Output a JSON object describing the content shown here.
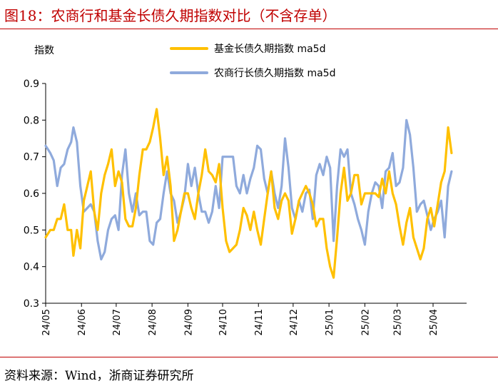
{
  "figure": {
    "title": "图18：农商行和基金长债久期指数对比（不含存单）",
    "source": "资料来源：Wind，浙商证券研究所"
  },
  "colors": {
    "fund": "#FFC000",
    "bank": "#8FAADC",
    "accent": "#C00000"
  },
  "chart_data": {
    "type": "line",
    "ylabel": "指数",
    "ylim": [
      0.3,
      0.9
    ],
    "yticks": [
      "0.3",
      "0.4",
      "0.5",
      "0.6",
      "0.7",
      "0.8",
      "0.9"
    ],
    "x_range": [
      "2024-05-01",
      "2025-04-30"
    ],
    "xticks": [
      "24/05",
      "24/06",
      "24/07",
      "24/08",
      "24/09",
      "24/10",
      "24/11",
      "24/12",
      "25/01",
      "25/02",
      "25/03",
      "25/04"
    ],
    "legend_position": "top",
    "series": [
      {
        "name": "基金长债久期指数 ma5d",
        "color": "#FFC000",
        "points": [
          [
            "2024-05-01",
            0.48
          ],
          [
            "2024-05-05",
            0.5
          ],
          [
            "2024-05-08",
            0.5
          ],
          [
            "2024-05-11",
            0.53
          ],
          [
            "2024-05-14",
            0.53
          ],
          [
            "2024-05-17",
            0.57
          ],
          [
            "2024-05-20",
            0.5
          ],
          [
            "2024-05-23",
            0.5
          ],
          [
            "2024-05-25",
            0.43
          ],
          [
            "2024-05-28",
            0.5
          ],
          [
            "2024-05-31",
            0.45
          ],
          [
            "2024-06-03",
            0.58
          ],
          [
            "2024-06-06",
            0.62
          ],
          [
            "2024-06-09",
            0.66
          ],
          [
            "2024-06-12",
            0.55
          ],
          [
            "2024-06-15",
            0.5
          ],
          [
            "2024-06-18",
            0.6
          ],
          [
            "2024-06-21",
            0.65
          ],
          [
            "2024-06-24",
            0.68
          ],
          [
            "2024-06-27",
            0.72
          ],
          [
            "2024-06-30",
            0.62
          ],
          [
            "2024-07-03",
            0.66
          ],
          [
            "2024-07-06",
            0.63
          ],
          [
            "2024-07-09",
            0.53
          ],
          [
            "2024-07-12",
            0.51
          ],
          [
            "2024-07-15",
            0.51
          ],
          [
            "2024-07-18",
            0.56
          ],
          [
            "2024-07-21",
            0.65
          ],
          [
            "2024-07-24",
            0.72
          ],
          [
            "2024-07-27",
            0.72
          ],
          [
            "2024-07-30",
            0.74
          ],
          [
            "2024-08-02",
            0.78
          ],
          [
            "2024-08-05",
            0.83
          ],
          [
            "2024-08-08",
            0.75
          ],
          [
            "2024-08-11",
            0.65
          ],
          [
            "2024-08-14",
            0.7
          ],
          [
            "2024-08-17",
            0.62
          ],
          [
            "2024-08-20",
            0.47
          ],
          [
            "2024-08-23",
            0.5
          ],
          [
            "2024-08-26",
            0.55
          ],
          [
            "2024-08-29",
            0.6
          ],
          [
            "2024-09-01",
            0.6
          ],
          [
            "2024-09-04",
            0.56
          ],
          [
            "2024-09-07",
            0.53
          ],
          [
            "2024-09-10",
            0.6
          ],
          [
            "2024-09-13",
            0.65
          ],
          [
            "2024-09-16",
            0.72
          ],
          [
            "2024-09-19",
            0.66
          ],
          [
            "2024-09-22",
            0.65
          ],
          [
            "2024-09-25",
            0.63
          ],
          [
            "2024-09-28",
            0.68
          ],
          [
            "2024-10-01",
            0.56
          ],
          [
            "2024-10-04",
            0.47
          ],
          [
            "2024-10-07",
            0.44
          ],
          [
            "2024-10-10",
            0.45
          ],
          [
            "2024-10-13",
            0.46
          ],
          [
            "2024-10-16",
            0.5
          ],
          [
            "2024-10-19",
            0.56
          ],
          [
            "2024-10-22",
            0.54
          ],
          [
            "2024-10-25",
            0.5
          ],
          [
            "2024-10-28",
            0.55
          ],
          [
            "2024-10-31",
            0.5
          ],
          [
            "2024-11-03",
            0.46
          ],
          [
            "2024-11-06",
            0.53
          ],
          [
            "2024-11-09",
            0.6
          ],
          [
            "2024-11-12",
            0.66
          ],
          [
            "2024-11-15",
            0.56
          ],
          [
            "2024-11-18",
            0.53
          ],
          [
            "2024-11-21",
            0.58
          ],
          [
            "2024-11-24",
            0.6
          ],
          [
            "2024-11-27",
            0.58
          ],
          [
            "2024-11-30",
            0.49
          ],
          [
            "2024-12-03",
            0.53
          ],
          [
            "2024-12-06",
            0.58
          ],
          [
            "2024-12-09",
            0.6
          ],
          [
            "2024-12-12",
            0.62
          ],
          [
            "2024-12-15",
            0.6
          ],
          [
            "2024-12-18",
            0.57
          ],
          [
            "2024-12-21",
            0.51
          ],
          [
            "2024-12-24",
            0.53
          ],
          [
            "2024-12-27",
            0.53
          ],
          [
            "2024-12-30",
            0.45
          ],
          [
            "2025-01-02",
            0.4
          ],
          [
            "2025-01-05",
            0.37
          ],
          [
            "2025-01-08",
            0.48
          ],
          [
            "2025-01-11",
            0.6
          ],
          [
            "2025-01-14",
            0.67
          ],
          [
            "2025-01-17",
            0.58
          ],
          [
            "2025-01-20",
            0.6
          ],
          [
            "2025-01-23",
            0.65
          ],
          [
            "2025-01-26",
            0.65
          ],
          [
            "2025-01-29",
            0.57
          ],
          [
            "2025-02-01",
            0.6
          ],
          [
            "2025-02-04",
            0.6
          ],
          [
            "2025-02-07",
            0.6
          ],
          [
            "2025-02-10",
            0.6
          ],
          [
            "2025-02-13",
            0.59
          ],
          [
            "2025-02-16",
            0.64
          ],
          [
            "2025-02-19",
            0.6
          ],
          [
            "2025-02-22",
            0.66
          ],
          [
            "2025-02-25",
            0.6
          ],
          [
            "2025-02-28",
            0.57
          ],
          [
            "2025-03-03",
            0.51
          ],
          [
            "2025-03-06",
            0.46
          ],
          [
            "2025-03-09",
            0.52
          ],
          [
            "2025-03-12",
            0.56
          ],
          [
            "2025-03-15",
            0.48
          ],
          [
            "2025-03-18",
            0.45
          ],
          [
            "2025-03-21",
            0.42
          ],
          [
            "2025-03-24",
            0.45
          ],
          [
            "2025-03-27",
            0.53
          ],
          [
            "2025-03-30",
            0.56
          ],
          [
            "2025-04-02",
            0.51
          ],
          [
            "2025-04-05",
            0.57
          ],
          [
            "2025-04-08",
            0.63
          ],
          [
            "2025-04-11",
            0.66
          ],
          [
            "2025-04-14",
            0.78
          ],
          [
            "2025-04-17",
            0.71
          ]
        ]
      },
      {
        "name": "农商行长债久期指数 ma5d",
        "color": "#8FAADC",
        "points": [
          [
            "2024-05-01",
            0.73
          ],
          [
            "2024-05-05",
            0.71
          ],
          [
            "2024-05-08",
            0.69
          ],
          [
            "2024-05-11",
            0.62
          ],
          [
            "2024-05-14",
            0.67
          ],
          [
            "2024-05-17",
            0.68
          ],
          [
            "2024-05-20",
            0.72
          ],
          [
            "2024-05-23",
            0.74
          ],
          [
            "2024-05-25",
            0.78
          ],
          [
            "2024-05-28",
            0.74
          ],
          [
            "2024-05-31",
            0.62
          ],
          [
            "2024-06-03",
            0.55
          ],
          [
            "2024-06-06",
            0.56
          ],
          [
            "2024-06-09",
            0.57
          ],
          [
            "2024-06-12",
            0.55
          ],
          [
            "2024-06-15",
            0.47
          ],
          [
            "2024-06-18",
            0.42
          ],
          [
            "2024-06-21",
            0.44
          ],
          [
            "2024-06-24",
            0.5
          ],
          [
            "2024-06-27",
            0.53
          ],
          [
            "2024-06-30",
            0.54
          ],
          [
            "2024-07-03",
            0.5
          ],
          [
            "2024-07-06",
            0.65
          ],
          [
            "2024-07-09",
            0.72
          ],
          [
            "2024-07-12",
            0.6
          ],
          [
            "2024-07-15",
            0.55
          ],
          [
            "2024-07-18",
            0.6
          ],
          [
            "2024-07-21",
            0.54
          ],
          [
            "2024-07-24",
            0.55
          ],
          [
            "2024-07-27",
            0.55
          ],
          [
            "2024-07-30",
            0.47
          ],
          [
            "2024-08-02",
            0.46
          ],
          [
            "2024-08-05",
            0.52
          ],
          [
            "2024-08-08",
            0.53
          ],
          [
            "2024-08-11",
            0.6
          ],
          [
            "2024-08-14",
            0.66
          ],
          [
            "2024-08-17",
            0.6
          ],
          [
            "2024-08-20",
            0.58
          ],
          [
            "2024-08-23",
            0.52
          ],
          [
            "2024-08-26",
            0.55
          ],
          [
            "2024-08-29",
            0.59
          ],
          [
            "2024-09-01",
            0.68
          ],
          [
            "2024-09-04",
            0.62
          ],
          [
            "2024-09-07",
            0.67
          ],
          [
            "2024-09-10",
            0.6
          ],
          [
            "2024-09-13",
            0.55
          ],
          [
            "2024-09-16",
            0.55
          ],
          [
            "2024-09-19",
            0.52
          ],
          [
            "2024-09-22",
            0.55
          ],
          [
            "2024-09-25",
            0.62
          ],
          [
            "2024-09-28",
            0.56
          ],
          [
            "2024-10-01",
            0.7
          ],
          [
            "2024-10-04",
            0.7
          ],
          [
            "2024-10-07",
            0.7
          ],
          [
            "2024-10-10",
            0.7
          ],
          [
            "2024-10-13",
            0.62
          ],
          [
            "2024-10-16",
            0.6
          ],
          [
            "2024-10-19",
            0.65
          ],
          [
            "2024-10-22",
            0.6
          ],
          [
            "2024-10-25",
            0.64
          ],
          [
            "2024-10-28",
            0.67
          ],
          [
            "2024-10-31",
            0.73
          ],
          [
            "2024-11-03",
            0.72
          ],
          [
            "2024-11-06",
            0.64
          ],
          [
            "2024-11-09",
            0.6
          ],
          [
            "2024-11-12",
            0.66
          ],
          [
            "2024-11-15",
            0.6
          ],
          [
            "2024-11-18",
            0.56
          ],
          [
            "2024-11-21",
            0.62
          ],
          [
            "2024-11-24",
            0.75
          ],
          [
            "2024-11-27",
            0.67
          ],
          [
            "2024-11-30",
            0.56
          ],
          [
            "2024-12-03",
            0.53
          ],
          [
            "2024-12-06",
            0.58
          ],
          [
            "2024-12-09",
            0.55
          ],
          [
            "2024-12-12",
            0.6
          ],
          [
            "2024-12-15",
            0.61
          ],
          [
            "2024-12-18",
            0.53
          ],
          [
            "2024-12-21",
            0.65
          ],
          [
            "2024-12-24",
            0.68
          ],
          [
            "2024-12-27",
            0.65
          ],
          [
            "2024-12-30",
            0.7
          ],
          [
            "2025-01-02",
            0.67
          ],
          [
            "2025-01-05",
            0.47
          ],
          [
            "2025-01-08",
            0.62
          ],
          [
            "2025-01-11",
            0.72
          ],
          [
            "2025-01-14",
            0.7
          ],
          [
            "2025-01-17",
            0.72
          ],
          [
            "2025-01-20",
            0.6
          ],
          [
            "2025-01-23",
            0.57
          ],
          [
            "2025-01-26",
            0.53
          ],
          [
            "2025-01-29",
            0.5
          ],
          [
            "2025-02-01",
            0.46
          ],
          [
            "2025-02-04",
            0.55
          ],
          [
            "2025-02-07",
            0.6
          ],
          [
            "2025-02-10",
            0.63
          ],
          [
            "2025-02-13",
            0.62
          ],
          [
            "2025-02-16",
            0.56
          ],
          [
            "2025-02-19",
            0.66
          ],
          [
            "2025-02-22",
            0.67
          ],
          [
            "2025-02-25",
            0.71
          ],
          [
            "2025-02-28",
            0.62
          ],
          [
            "2025-03-03",
            0.63
          ],
          [
            "2025-03-06",
            0.67
          ],
          [
            "2025-03-09",
            0.8
          ],
          [
            "2025-03-12",
            0.76
          ],
          [
            "2025-03-15",
            0.67
          ],
          [
            "2025-03-18",
            0.55
          ],
          [
            "2025-03-21",
            0.57
          ],
          [
            "2025-03-24",
            0.58
          ],
          [
            "2025-03-27",
            0.54
          ],
          [
            "2025-03-30",
            0.5
          ],
          [
            "2025-04-02",
            0.53
          ],
          [
            "2025-04-05",
            0.55
          ],
          [
            "2025-04-08",
            0.58
          ],
          [
            "2025-04-11",
            0.48
          ],
          [
            "2025-04-14",
            0.62
          ],
          [
            "2025-04-17",
            0.66
          ]
        ]
      }
    ]
  }
}
